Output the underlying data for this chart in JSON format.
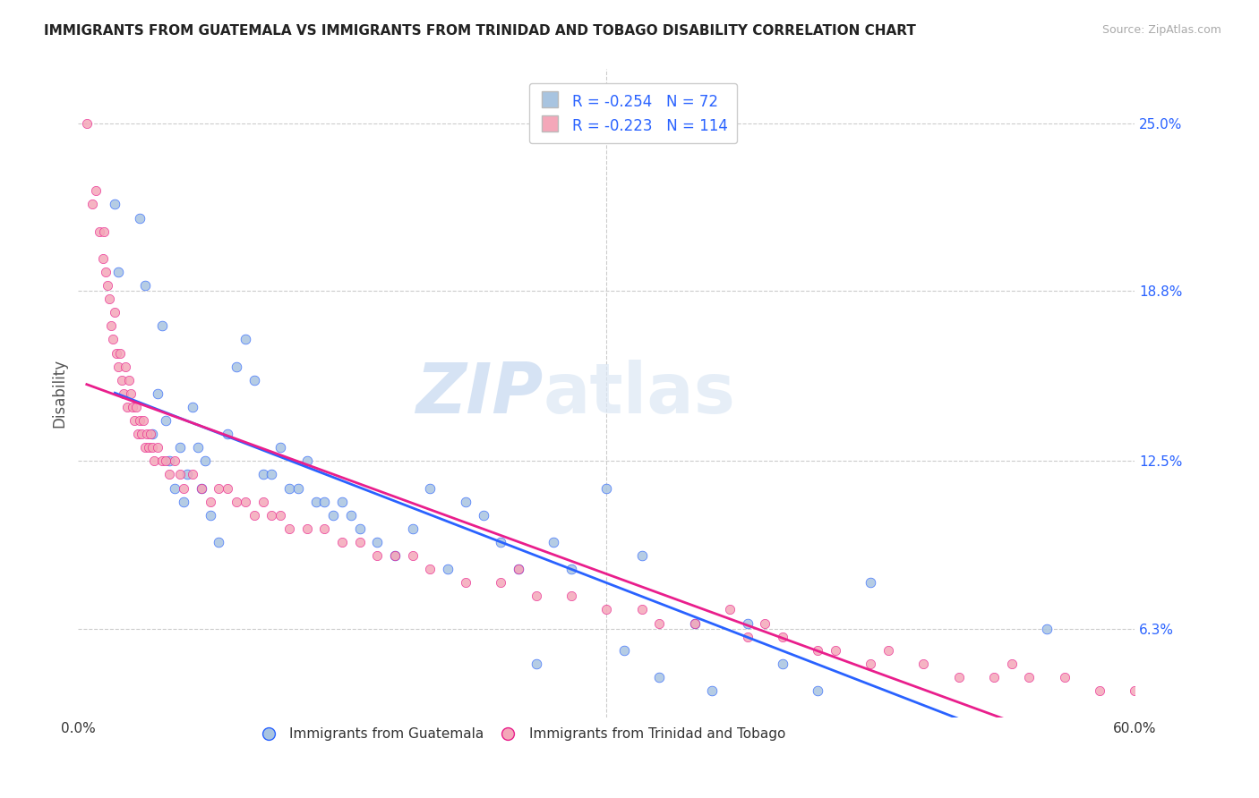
{
  "title": "IMMIGRANTS FROM GUATEMALA VS IMMIGRANTS FROM TRINIDAD AND TOBAGO DISABILITY CORRELATION CHART",
  "source": "Source: ZipAtlas.com",
  "ylabel": "Disability",
  "yticks": [
    6.3,
    12.5,
    18.8,
    25.0
  ],
  "ytick_labels": [
    "6.3%",
    "12.5%",
    "18.8%",
    "25.0%"
  ],
  "xlim": [
    0.0,
    60.0
  ],
  "ylim": [
    3.0,
    27.0
  ],
  "legend1_label": "Immigrants from Guatemala",
  "legend2_label": "Immigrants from Trinidad and Tobago",
  "R1": "-0.254",
  "N1": "72",
  "R2": "-0.223",
  "N2": "114",
  "color_blue": "#a8c4e0",
  "color_pink": "#f4a7b9",
  "line_blue": "#2962ff",
  "line_pink": "#e91e8c",
  "line_dashed": "#cccccc",
  "watermark_zip": "ZIP",
  "watermark_atlas": "atlas",
  "guatemala_x": [
    2.1,
    2.3,
    3.5,
    3.8,
    4.2,
    4.5,
    4.8,
    5.0,
    5.2,
    5.5,
    5.8,
    6.0,
    6.2,
    6.5,
    6.8,
    7.0,
    7.2,
    7.5,
    8.0,
    8.5,
    9.0,
    9.5,
    10.0,
    10.5,
    11.0,
    11.5,
    12.0,
    12.5,
    13.0,
    13.5,
    14.0,
    14.5,
    15.0,
    15.5,
    16.0,
    17.0,
    18.0,
    19.0,
    20.0,
    21.0,
    22.0,
    23.0,
    24.0,
    25.0,
    26.0,
    27.0,
    28.0,
    30.0,
    31.0,
    32.0,
    33.0,
    35.0,
    36.0,
    38.0,
    40.0,
    42.0,
    45.0,
    55.0
  ],
  "guatemala_y": [
    22.0,
    19.5,
    21.5,
    19.0,
    13.5,
    15.0,
    17.5,
    14.0,
    12.5,
    11.5,
    13.0,
    11.0,
    12.0,
    14.5,
    13.0,
    11.5,
    12.5,
    10.5,
    9.5,
    13.5,
    16.0,
    17.0,
    15.5,
    12.0,
    12.0,
    13.0,
    11.5,
    11.5,
    12.5,
    11.0,
    11.0,
    10.5,
    11.0,
    10.5,
    10.0,
    9.5,
    9.0,
    10.0,
    11.5,
    8.5,
    11.0,
    10.5,
    9.5,
    8.5,
    5.0,
    9.5,
    8.5,
    11.5,
    5.5,
    9.0,
    4.5,
    6.5,
    4.0,
    6.5,
    5.0,
    4.0,
    8.0,
    6.3
  ],
  "trinidad_x": [
    0.5,
    0.8,
    1.0,
    1.2,
    1.4,
    1.5,
    1.6,
    1.7,
    1.8,
    1.9,
    2.0,
    2.1,
    2.2,
    2.3,
    2.4,
    2.5,
    2.6,
    2.7,
    2.8,
    2.9,
    3.0,
    3.1,
    3.2,
    3.3,
    3.4,
    3.5,
    3.6,
    3.7,
    3.8,
    3.9,
    4.0,
    4.1,
    4.2,
    4.3,
    4.5,
    4.8,
    5.0,
    5.2,
    5.5,
    5.8,
    6.0,
    6.5,
    7.0,
    7.5,
    8.0,
    8.5,
    9.0,
    9.5,
    10.0,
    10.5,
    11.0,
    11.5,
    12.0,
    13.0,
    14.0,
    15.0,
    16.0,
    17.0,
    18.0,
    19.0,
    20.0,
    22.0,
    24.0,
    25.0,
    26.0,
    28.0,
    30.0,
    32.0,
    33.0,
    35.0,
    37.0,
    38.0,
    39.0,
    40.0,
    42.0,
    43.0,
    45.0,
    46.0,
    48.0,
    50.0,
    52.0,
    53.0,
    54.0,
    56.0,
    58.0,
    60.0
  ],
  "trinidad_y": [
    25.0,
    22.0,
    22.5,
    21.0,
    20.0,
    21.0,
    19.5,
    19.0,
    18.5,
    17.5,
    17.0,
    18.0,
    16.5,
    16.0,
    16.5,
    15.5,
    15.0,
    16.0,
    14.5,
    15.5,
    15.0,
    14.5,
    14.0,
    14.5,
    13.5,
    14.0,
    13.5,
    14.0,
    13.0,
    13.5,
    13.0,
    13.5,
    13.0,
    12.5,
    13.0,
    12.5,
    12.5,
    12.0,
    12.5,
    12.0,
    11.5,
    12.0,
    11.5,
    11.0,
    11.5,
    11.5,
    11.0,
    11.0,
    10.5,
    11.0,
    10.5,
    10.5,
    10.0,
    10.0,
    10.0,
    9.5,
    9.5,
    9.0,
    9.0,
    9.0,
    8.5,
    8.0,
    8.0,
    8.5,
    7.5,
    7.5,
    7.0,
    7.0,
    6.5,
    6.5,
    7.0,
    6.0,
    6.5,
    6.0,
    5.5,
    5.5,
    5.0,
    5.5,
    5.0,
    4.5,
    4.5,
    5.0,
    4.5,
    4.5,
    4.0,
    4.0
  ]
}
